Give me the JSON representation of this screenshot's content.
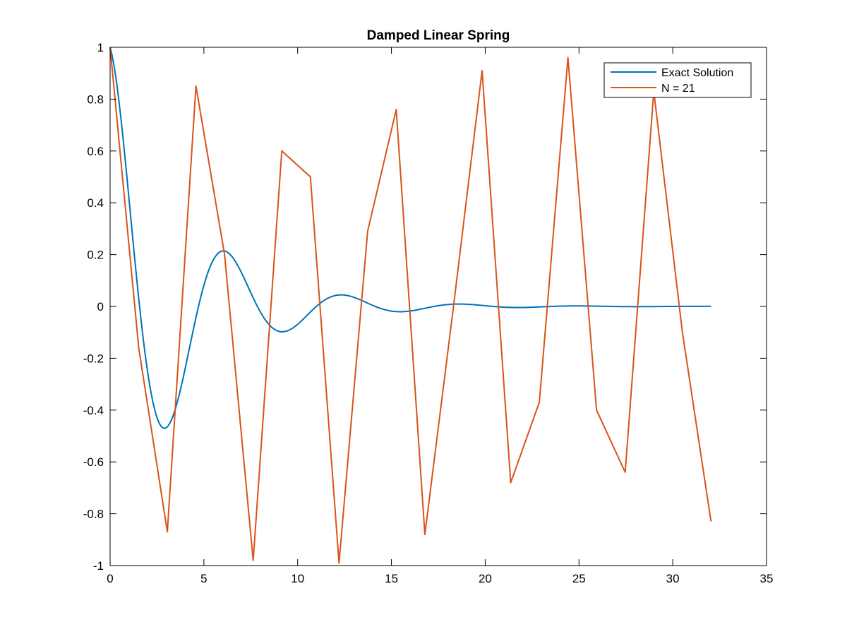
{
  "chart_data": {
    "type": "line",
    "title": "Damped Linear Spring",
    "xlabel": "",
    "ylabel": "",
    "xlim": [
      0,
      35
    ],
    "ylim": [
      -1,
      1
    ],
    "xticks": [
      0,
      5,
      10,
      15,
      20,
      25,
      30,
      35
    ],
    "yticks": [
      -1,
      -0.8,
      -0.6,
      -0.4,
      -0.2,
      0,
      0.2,
      0.4,
      0.6,
      0.8,
      1
    ],
    "xtick_labels": [
      "0",
      "5",
      "10",
      "15",
      "20",
      "25",
      "30",
      "35"
    ],
    "ytick_labels": [
      "-1",
      "-0.8",
      "-0.6",
      "-0.4",
      "-0.2",
      "0",
      "0.2",
      "0.4",
      "0.6",
      "0.8",
      "1"
    ],
    "grid": false,
    "legend_position": "top-right",
    "series": [
      {
        "name": "Exact Solution",
        "color": "#0072bd",
        "function": "damped_cosine",
        "params": {
          "decay": 0.25,
          "omega": 1.0,
          "x_start": 0,
          "x_end": 32.04
        }
      },
      {
        "name": "N = 21",
        "color": "#d95319",
        "x": [
          0,
          1.526,
          3.051,
          4.577,
          6.103,
          7.629,
          9.154,
          10.68,
          12.206,
          13.731,
          15.257,
          16.783,
          18.309,
          19.834,
          21.36,
          22.886,
          24.411,
          25.937,
          27.463,
          28.989,
          30.514,
          32.04
        ],
        "values": [
          1.0,
          -0.16,
          -0.87,
          0.85,
          0.2,
          -0.98,
          0.6,
          0.5,
          -0.99,
          0.29,
          0.76,
          -0.88,
          0.0,
          0.91,
          -0.68,
          -0.37,
          0.96,
          -0.4,
          -0.64,
          0.83,
          -0.1,
          -0.83
        ]
      }
    ]
  }
}
